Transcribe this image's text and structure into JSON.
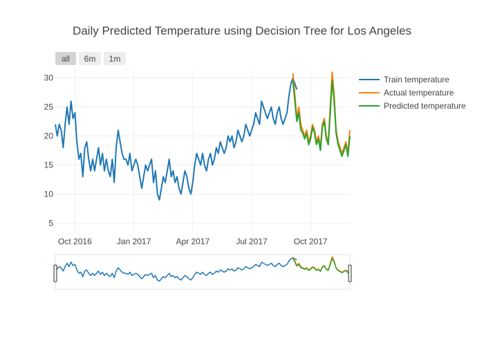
{
  "chart_data": {
    "type": "line",
    "title": "Daily Predicted Temperature using Decision Tree for Los Angeles",
    "xlabel": "",
    "ylabel": "",
    "ylim": [
      3.5,
      31.5
    ],
    "y_ticks": [
      5,
      10,
      15,
      20,
      25,
      30
    ],
    "x_ticks": [
      {
        "label": "Oct 2016",
        "month_index": 1
      },
      {
        "label": "Jan 2017",
        "month_index": 4
      },
      {
        "label": "Apr 2017",
        "month_index": 7
      },
      {
        "label": "Jul 2017",
        "month_index": 10
      },
      {
        "label": "Oct 2017",
        "month_index": 13
      }
    ],
    "x_range_months": [
      0.0,
      15.0
    ],
    "x_range_start": "Sep 2016",
    "range_selector": {
      "buttons": [
        "all",
        "6m",
        "1m"
      ],
      "active": "all"
    },
    "legend": {
      "placement": "right",
      "entries": [
        "Train temperature",
        "Actual temperature",
        "Predicted temperature"
      ]
    },
    "colors": {
      "train": "#1f77b4",
      "actual": "#ff7f0e",
      "predicted": "#2ca02c"
    },
    "series": [
      {
        "name": "Train temperature",
        "color_key": "train",
        "points": [
          [
            0.0,
            22
          ],
          [
            0.1,
            20
          ],
          [
            0.2,
            22
          ],
          [
            0.3,
            21
          ],
          [
            0.4,
            18
          ],
          [
            0.5,
            22
          ],
          [
            0.6,
            25
          ],
          [
            0.7,
            22
          ],
          [
            0.8,
            26
          ],
          [
            0.9,
            23
          ],
          [
            1.0,
            24
          ],
          [
            1.1,
            19
          ],
          [
            1.2,
            16
          ],
          [
            1.3,
            17
          ],
          [
            1.4,
            13
          ],
          [
            1.5,
            18
          ],
          [
            1.6,
            19
          ],
          [
            1.7,
            16
          ],
          [
            1.8,
            14
          ],
          [
            1.9,
            16
          ],
          [
            2.0,
            14
          ],
          [
            2.1,
            16
          ],
          [
            2.2,
            18
          ],
          [
            2.3,
            15
          ],
          [
            2.4,
            17
          ],
          [
            2.5,
            14
          ],
          [
            2.6,
            16
          ],
          [
            2.7,
            14
          ],
          [
            2.8,
            13
          ],
          [
            2.9,
            16
          ],
          [
            3.0,
            12
          ],
          [
            3.1,
            18
          ],
          [
            3.2,
            21
          ],
          [
            3.3,
            19
          ],
          [
            3.4,
            17
          ],
          [
            3.5,
            16
          ],
          [
            3.6,
            16
          ],
          [
            3.7,
            15
          ],
          [
            3.8,
            17
          ],
          [
            3.9,
            14
          ],
          [
            4.0,
            15
          ],
          [
            4.1,
            16
          ],
          [
            4.2,
            15
          ],
          [
            4.3,
            13
          ],
          [
            4.4,
            11
          ],
          [
            4.5,
            13
          ],
          [
            4.6,
            15
          ],
          [
            4.7,
            14
          ],
          [
            4.8,
            15
          ],
          [
            4.9,
            16
          ],
          [
            5.0,
            12
          ],
          [
            5.1,
            14
          ],
          [
            5.2,
            10
          ],
          [
            5.3,
            9
          ],
          [
            5.4,
            11
          ],
          [
            5.5,
            13
          ],
          [
            5.6,
            12
          ],
          [
            5.7,
            14
          ],
          [
            5.8,
            16
          ],
          [
            5.9,
            13
          ],
          [
            6.0,
            14
          ],
          [
            6.1,
            12
          ],
          [
            6.2,
            13
          ],
          [
            6.3,
            11
          ],
          [
            6.4,
            10
          ],
          [
            6.5,
            12
          ],
          [
            6.6,
            14
          ],
          [
            6.7,
            13
          ],
          [
            6.8,
            11
          ],
          [
            6.9,
            10
          ],
          [
            7.0,
            12
          ],
          [
            7.1,
            15
          ],
          [
            7.2,
            17
          ],
          [
            7.3,
            16
          ],
          [
            7.4,
            15
          ],
          [
            7.5,
            17
          ],
          [
            7.6,
            15
          ],
          [
            7.7,
            14
          ],
          [
            7.8,
            16
          ],
          [
            7.9,
            17
          ],
          [
            8.0,
            15
          ],
          [
            8.1,
            16
          ],
          [
            8.2,
            18
          ],
          [
            8.3,
            17
          ],
          [
            8.4,
            19
          ],
          [
            8.5,
            18
          ],
          [
            8.6,
            17
          ],
          [
            8.7,
            18
          ],
          [
            8.8,
            20
          ],
          [
            8.9,
            19
          ],
          [
            9.0,
            20
          ],
          [
            9.1,
            18
          ],
          [
            9.2,
            19
          ],
          [
            9.3,
            21
          ],
          [
            9.4,
            20
          ],
          [
            9.5,
            19
          ],
          [
            9.6,
            20
          ],
          [
            9.7,
            22
          ],
          [
            9.8,
            21
          ],
          [
            9.9,
            20
          ],
          [
            10.0,
            21
          ],
          [
            10.1,
            22
          ],
          [
            10.2,
            24
          ],
          [
            10.3,
            23
          ],
          [
            10.4,
            22
          ],
          [
            10.5,
            26
          ],
          [
            10.6,
            25
          ],
          [
            10.7,
            24
          ],
          [
            10.8,
            23
          ],
          [
            10.9,
            24
          ],
          [
            11.0,
            25
          ],
          [
            11.1,
            23
          ],
          [
            11.2,
            22
          ],
          [
            11.3,
            24
          ],
          [
            11.4,
            25
          ],
          [
            11.5,
            23
          ],
          [
            11.6,
            22
          ],
          [
            11.7,
            23
          ],
          [
            11.8,
            24
          ],
          [
            11.9,
            27
          ],
          [
            12.0,
            29
          ],
          [
            12.1,
            30
          ],
          [
            12.2,
            29
          ],
          [
            12.3,
            28
          ]
        ]
      },
      {
        "name": "Actual temperature",
        "color_key": "actual",
        "points": [
          [
            12.1,
            30.8
          ],
          [
            12.2,
            27
          ],
          [
            12.3,
            23
          ],
          [
            12.4,
            25
          ],
          [
            12.5,
            22
          ],
          [
            12.6,
            21
          ],
          [
            12.7,
            20
          ],
          [
            12.8,
            21
          ],
          [
            12.9,
            19
          ],
          [
            13.0,
            20
          ],
          [
            13.1,
            22
          ],
          [
            13.2,
            21
          ],
          [
            13.3,
            19
          ],
          [
            13.4,
            20
          ],
          [
            13.5,
            18
          ],
          [
            13.6,
            22
          ],
          [
            13.7,
            23
          ],
          [
            13.8,
            20
          ],
          [
            13.9,
            19
          ],
          [
            14.0,
            25
          ],
          [
            14.1,
            31
          ],
          [
            14.2,
            27
          ],
          [
            14.3,
            21
          ],
          [
            14.4,
            19
          ],
          [
            14.5,
            18
          ],
          [
            14.6,
            17
          ],
          [
            14.7,
            18
          ],
          [
            14.8,
            19
          ],
          [
            14.9,
            17
          ],
          [
            15.0,
            21
          ]
        ]
      },
      {
        "name": "Predicted temperature",
        "color_key": "predicted",
        "points": [
          [
            12.1,
            29.5
          ],
          [
            12.2,
            26
          ],
          [
            12.3,
            22.5
          ],
          [
            12.4,
            24
          ],
          [
            12.5,
            21
          ],
          [
            12.6,
            20.5
          ],
          [
            12.7,
            19.5
          ],
          [
            12.8,
            20.5
          ],
          [
            12.9,
            18.5
          ],
          [
            13.0,
            19.5
          ],
          [
            13.1,
            21.5
          ],
          [
            13.2,
            20.5
          ],
          [
            13.3,
            18.5
          ],
          [
            13.4,
            19.5
          ],
          [
            13.5,
            17.5
          ],
          [
            13.6,
            21.5
          ],
          [
            13.7,
            22.5
          ],
          [
            13.8,
            19.5
          ],
          [
            13.9,
            18.5
          ],
          [
            14.0,
            24
          ],
          [
            14.1,
            29.5
          ],
          [
            14.2,
            26
          ],
          [
            14.3,
            20.5
          ],
          [
            14.4,
            18.5
          ],
          [
            14.5,
            17.5
          ],
          [
            14.6,
            16.5
          ],
          [
            14.7,
            17.5
          ],
          [
            14.8,
            18.5
          ],
          [
            14.9,
            16.5
          ],
          [
            15.0,
            20
          ]
        ]
      }
    ]
  }
}
